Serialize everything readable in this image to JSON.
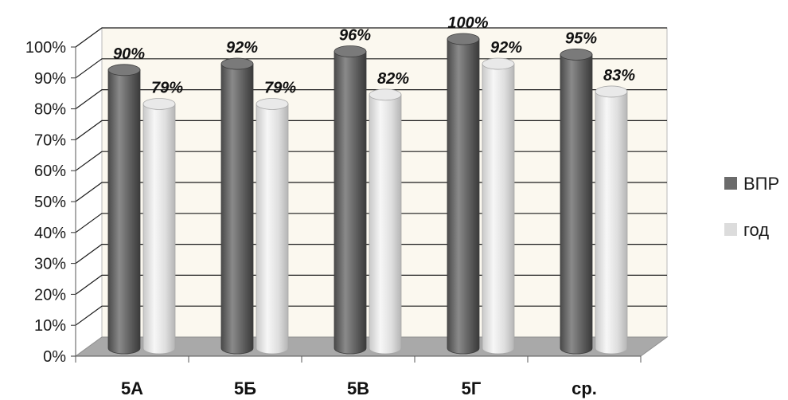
{
  "chart_data": {
    "type": "bar",
    "style": "3d-cylinder",
    "categories": [
      "5А",
      "5Б",
      "5В",
      "5Г",
      "ср."
    ],
    "series": [
      {
        "name": "ВПР",
        "values": [
          90,
          92,
          96,
          100,
          95
        ],
        "color": "#6b6b6b"
      },
      {
        "name": "год",
        "values": [
          79,
          79,
          82,
          92,
          83
        ],
        "color": "#dcdcdc"
      }
    ],
    "data_labels": [
      [
        "90%",
        "92%",
        "96%",
        "100%",
        "95%"
      ],
      [
        "79%",
        "79%",
        "82%",
        "92%",
        "83%"
      ]
    ],
    "y_ticks": [
      "0%",
      "10%",
      "20%",
      "30%",
      "40%",
      "50%",
      "60%",
      "70%",
      "80%",
      "90%",
      "100%"
    ],
    "ylim": [
      0,
      100
    ],
    "grid": true,
    "legend_position": "right",
    "colors": {
      "wall": "#fbf8ef",
      "floor": "#a9a9a9",
      "grid": "#1a1a1a"
    }
  }
}
